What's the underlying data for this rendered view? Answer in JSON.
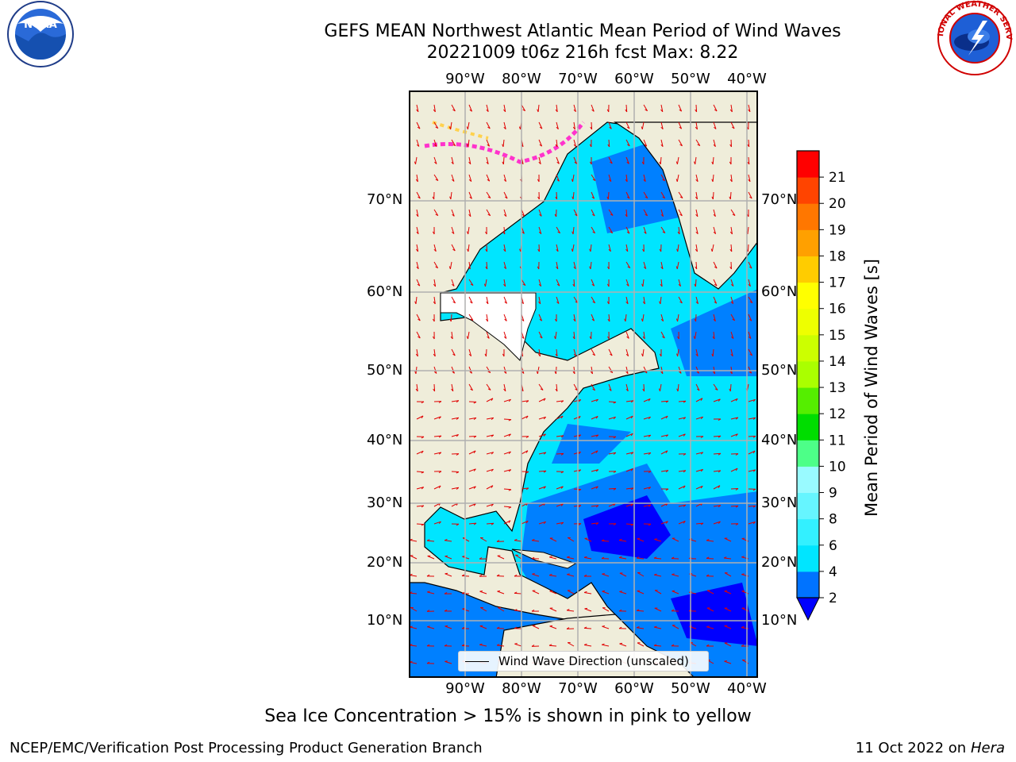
{
  "header": {
    "title_line1": "GEFS MEAN Northwest Atlantic Mean Period of Wind Waves",
    "title_line2": "20221009 t06z 216h fcst   Max: 8.22"
  },
  "logos": {
    "left": {
      "name": "noaa-logo",
      "text": "NOAA",
      "ring_text": "NATIONAL OCEANIC AND ATMOSPHERIC ADMINISTRATION · U.S. DEPARTMENT OF COMMERCE"
    },
    "right": {
      "name": "nws-logo",
      "ring_text": "NATIONAL WEATHER SERVICE"
    }
  },
  "map": {
    "lon_ticks": [
      "90°W",
      "80°W",
      "70°W",
      "60°W",
      "50°W",
      "40°W"
    ],
    "lat_ticks": [
      "70°N",
      "60°N",
      "50°N",
      "40°N",
      "30°N",
      "20°N",
      "10°N"
    ],
    "legend_label": "Wind Wave Direction (unscaled)",
    "colors": {
      "land": "#efedda",
      "ocean_low": "#0000ff",
      "ocean_mid": "#0080ff",
      "ocean_high": "#00e5ff",
      "arrows": "#e00000",
      "ice_pink": "#ff33cc",
      "ice_yellow": "#ffd24d",
      "grid": "#b0b0b0"
    }
  },
  "colorbar": {
    "title": "Mean Period of Wind Waves [s]",
    "ticks": [
      "2",
      "4",
      "6",
      "8",
      "9",
      "10",
      "11",
      "12",
      "13",
      "14",
      "15",
      "16",
      "17",
      "18",
      "19",
      "20",
      "21"
    ],
    "colors": [
      "#0073ff",
      "#00e5ff",
      "#33f0ff",
      "#66f5ff",
      "#99faff",
      "#4dff88",
      "#00dd00",
      "#55ee00",
      "#aaff00",
      "#ccff00",
      "#eeff00",
      "#ffff00",
      "#ffcc00",
      "#ffa000",
      "#ff7700",
      "#ff4400",
      "#ff0000"
    ],
    "extend_color": "#0000ff"
  },
  "note": "Sea Ice Concentration > 15% is shown in pink to yellow",
  "footer": {
    "left": "NCEP/EMC/Verification Post Processing Product Generation Branch",
    "right_date": "11 Oct 2022 on ",
    "right_host": "Hera"
  }
}
